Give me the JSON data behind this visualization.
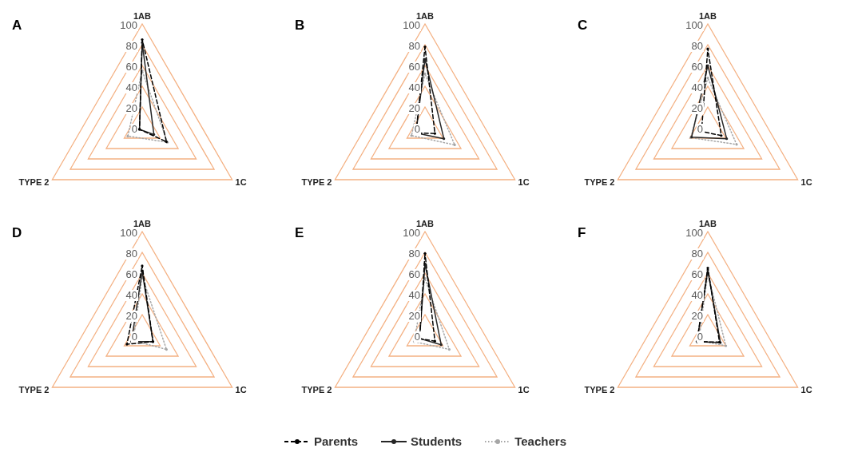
{
  "chart_data": [
    {
      "type": "radar",
      "title": "A",
      "categories": [
        "1AB",
        "1C",
        "TYPE 2"
      ],
      "ylim": [
        0,
        100
      ],
      "yticks": [
        0,
        20,
        40,
        60,
        80,
        100
      ],
      "grid": true,
      "series": [
        {
          "color": "#000000",
          "line_style": "dashed",
          "marker": "circle",
          "values": [
            85,
            27,
            3
          ]
        },
        {
          "color": "#262626",
          "line_style": "solid",
          "marker": "circle",
          "values": [
            82,
            13,
            3
          ]
        },
        {
          "color": "#a6a6a6",
          "line_style": "dotted",
          "marker": "circle",
          "values": [
            55,
            28,
            16
          ]
        }
      ]
    },
    {
      "type": "radar",
      "title": "B",
      "categories": [
        "1AB",
        "1C",
        "TYPE 2"
      ],
      "ylim": [
        0,
        100
      ],
      "yticks": [
        0,
        20,
        40,
        60,
        80,
        100
      ],
      "grid": true,
      "series": [
        {
          "color": "#000000",
          "line_style": "dashed",
          "marker": "circle",
          "values": [
            78,
            11,
            10
          ]
        },
        {
          "color": "#262626",
          "line_style": "solid",
          "marker": "circle",
          "values": [
            66,
            21,
            10
          ]
        },
        {
          "color": "#a6a6a6",
          "line_style": "dotted",
          "marker": "circle",
          "values": [
            52,
            33,
            15
          ]
        }
      ]
    },
    {
      "type": "radar",
      "title": "C",
      "categories": [
        "1AB",
        "1C",
        "TYPE 2"
      ],
      "ylim": [
        0,
        100
      ],
      "yticks": [
        0,
        20,
        40,
        60,
        80,
        100
      ],
      "grid": true,
      "series": [
        {
          "color": "#000000",
          "line_style": "dashed",
          "marker": "circle",
          "values": [
            76,
            15,
            7
          ]
        },
        {
          "color": "#262626",
          "line_style": "solid",
          "marker": "circle",
          "values": [
            60,
            21,
            18
          ]
        },
        {
          "color": "#a6a6a6",
          "line_style": "dotted",
          "marker": "circle",
          "values": [
            48,
            32,
            19
          ]
        }
      ]
    },
    {
      "type": "radar",
      "title": "D",
      "categories": [
        "1AB",
        "1C",
        "TYPE 2"
      ],
      "ylim": [
        0,
        100
      ],
      "yticks": [
        0,
        20,
        40,
        60,
        80,
        100
      ],
      "grid": true,
      "series": [
        {
          "color": "#000000",
          "line_style": "dashed",
          "marker": "circle",
          "values": [
            67,
            12,
            17
          ]
        },
        {
          "color": "#262626",
          "line_style": "solid",
          "marker": "circle",
          "values": [
            62,
            12,
            12
          ]
        },
        {
          "color": "#a6a6a6",
          "line_style": "dotted",
          "marker": "circle",
          "values": [
            57,
            27,
            10
          ]
        }
      ]
    },
    {
      "type": "radar",
      "title": "E",
      "categories": [
        "1AB",
        "1C",
        "TYPE 2"
      ],
      "ylim": [
        0,
        100
      ],
      "yticks": [
        0,
        20,
        40,
        60,
        80,
        100
      ],
      "grid": true,
      "series": [
        {
          "color": "#000000",
          "line_style": "dashed",
          "marker": "circle",
          "values": [
            79,
            11,
            6
          ]
        },
        {
          "color": "#262626",
          "line_style": "solid",
          "marker": "circle",
          "values": [
            69,
            18,
            6
          ]
        },
        {
          "color": "#a6a6a6",
          "line_style": "dotted",
          "marker": "circle",
          "values": [
            55,
            27,
            12
          ]
        }
      ]
    },
    {
      "type": "radar",
      "title": "F",
      "categories": [
        "1AB",
        "1C",
        "TYPE 2"
      ],
      "ylim": [
        0,
        100
      ],
      "yticks": [
        0,
        20,
        40,
        60,
        80,
        100
      ],
      "grid": true,
      "legend": "bottom",
      "series": [
        {
          "name": "Parents",
          "color": "#000000",
          "line_style": "dashed",
          "marker": "circle",
          "values": [
            65,
            13,
            12
          ]
        },
        {
          "name": "Students",
          "color": "#262626",
          "line_style": "solid",
          "marker": "circle",
          "values": [
            63,
            14,
            12
          ]
        },
        {
          "name": "Teachers",
          "color": "#a6a6a6",
          "line_style": "dotted",
          "marker": "circle",
          "values": [
            60,
            20,
            10
          ]
        }
      ]
    }
  ]
}
